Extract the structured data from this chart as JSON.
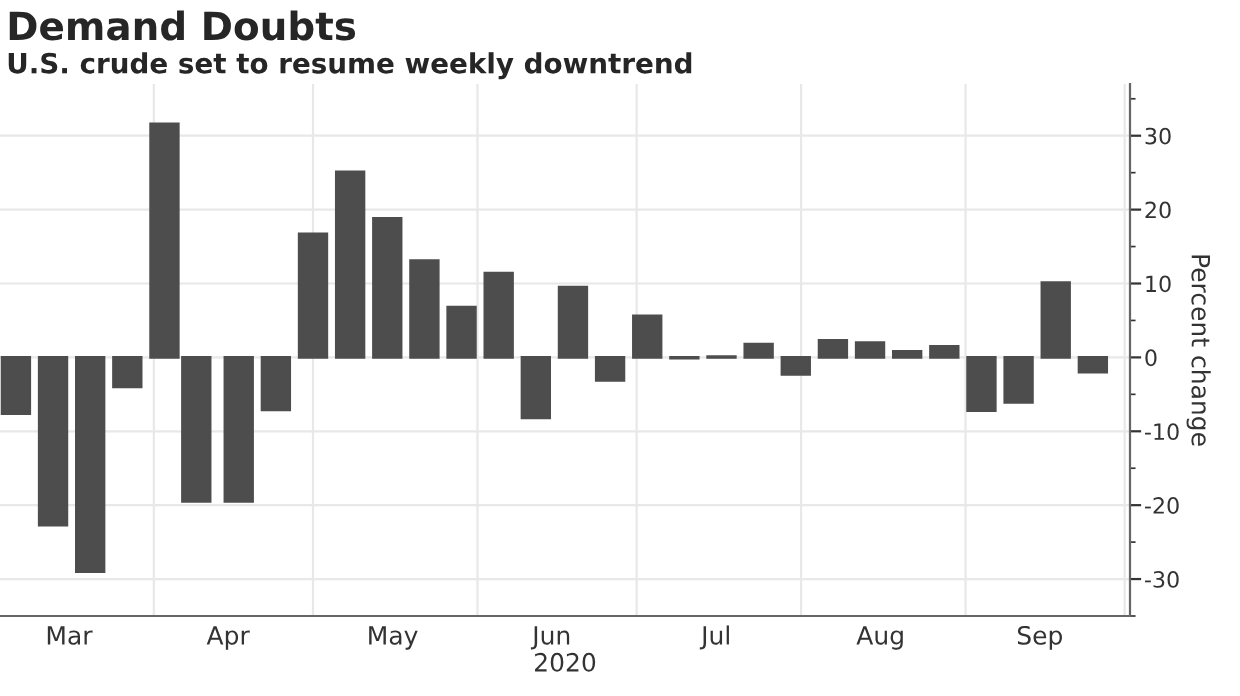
{
  "chart_data": {
    "type": "bar",
    "title": "Demand Doubts",
    "subtitle": "U.S. crude set to resume weekly downtrend",
    "xlabel": "2020",
    "ylabel": "Percent change",
    "x": [
      "2020-03-06",
      "2020-03-13",
      "2020-03-20",
      "2020-03-27",
      "2020-04-03",
      "2020-04-09",
      "2020-04-17",
      "2020-04-24",
      "2020-05-01",
      "2020-05-08",
      "2020-05-15",
      "2020-05-22",
      "2020-05-29",
      "2020-06-05",
      "2020-06-12",
      "2020-06-19",
      "2020-06-26",
      "2020-07-03",
      "2020-07-10",
      "2020-07-17",
      "2020-07-24",
      "2020-07-31",
      "2020-08-07",
      "2020-08-14",
      "2020-08-21",
      "2020-08-28",
      "2020-09-04",
      "2020-09-11",
      "2020-09-18",
      "2020-09-25"
    ],
    "values": [
      -7.6,
      -22.7,
      -29,
      -4,
      31.6,
      -19.5,
      -19.5,
      -7.1,
      16.7,
      25.1,
      18.8,
      13.1,
      6.8,
      11.4,
      -8.2,
      9.5,
      -3.1,
      5.6,
      -0.1,
      0.1,
      1.8,
      -2.3,
      2.3,
      2.0,
      0.8,
      1.5,
      -7.2,
      -6.1,
      10.1,
      -2.0
    ],
    "color": "#4d4d4d",
    "xlim": [
      "2020-03-03",
      "2020-10-02"
    ],
    "xticks": [
      {
        "value": "2020-03-16",
        "label": "Mar"
      },
      {
        "value": "2020-04-01",
        "label": null
      },
      {
        "value": "2020-04-15",
        "label": "Apr"
      },
      {
        "value": "2020-05-01",
        "label": null
      },
      {
        "value": "2020-05-16",
        "label": "May"
      },
      {
        "value": "2020-06-01",
        "label": null
      },
      {
        "value": "2020-06-15",
        "label": "Jun"
      },
      {
        "value": "2020-07-01",
        "label": null
      },
      {
        "value": "2020-07-16",
        "label": "Jul"
      },
      {
        "value": "2020-08-01",
        "label": null
      },
      {
        "value": "2020-08-16",
        "label": "Aug"
      },
      {
        "value": "2020-09-01",
        "label": null
      },
      {
        "value": "2020-09-15",
        "label": "Sep"
      },
      {
        "value": "2020-10-01",
        "label": null
      }
    ],
    "ylim": [
      -35,
      37
    ],
    "yticks": [
      -30,
      -20,
      -10,
      0,
      10,
      20,
      30
    ],
    "grid": true,
    "legend": false
  }
}
